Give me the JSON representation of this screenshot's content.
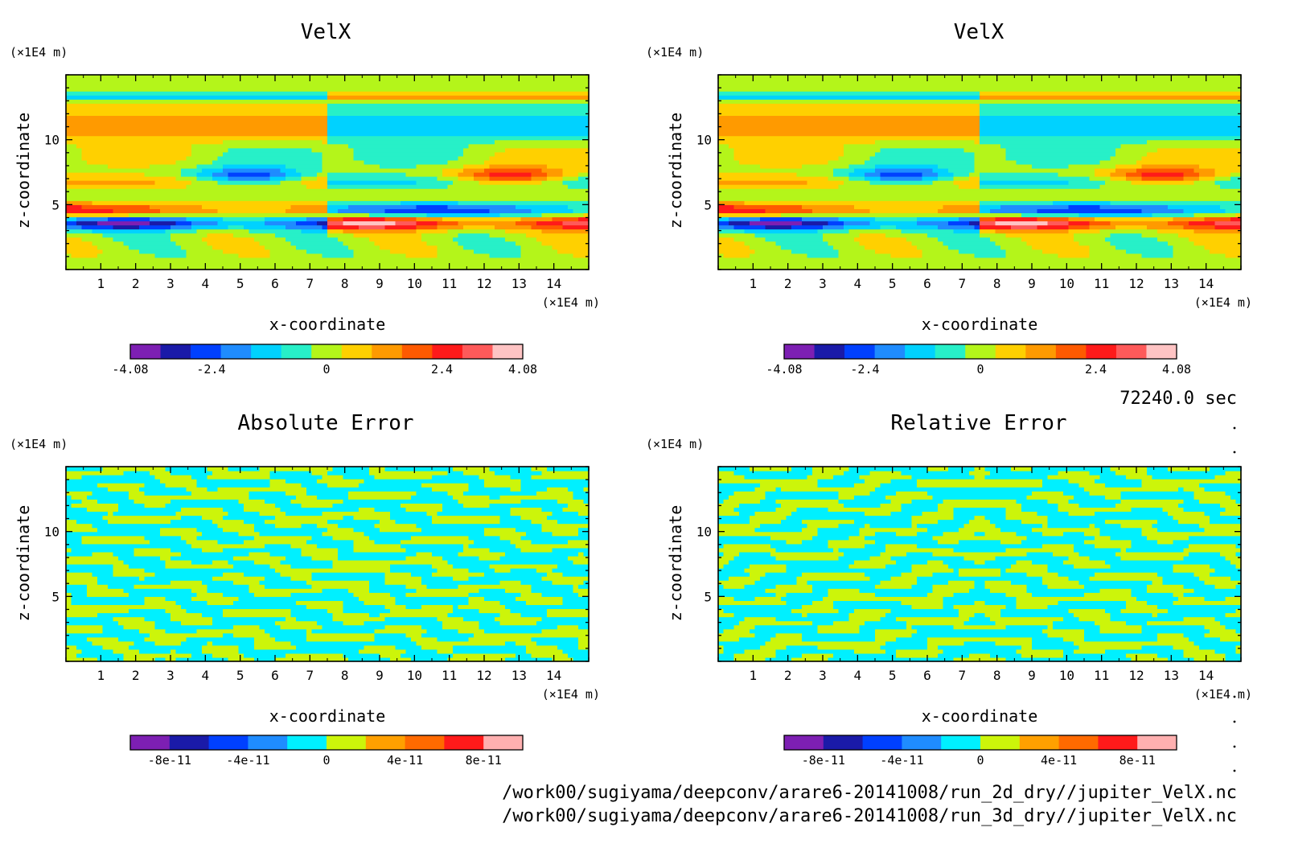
{
  "figure": {
    "time_label": "72240.0 sec",
    "footer_lines": [
      "/work00/sugiyama/deepconv/arare6-20141008/run_2d_dry//jupiter_VelX.nc",
      "/work00/sugiyama/deepconv/arare6-20141008/run_3d_dry//jupiter_VelX.nc"
    ]
  },
  "chart_data": [
    {
      "type": "heatmap",
      "title": "VelX",
      "xlabel": "x-coordinate",
      "ylabel": "z-coordinate",
      "x_unit": "(×1E4 m)",
      "y_unit": "(×1E4 m)",
      "xlim": [
        0,
        15
      ],
      "ylim": [
        0,
        15
      ],
      "x_ticks": [
        1,
        2,
        3,
        4,
        5,
        6,
        7,
        8,
        9,
        10,
        11,
        12,
        13,
        14
      ],
      "y_ticks": [
        5,
        10
      ],
      "colorbar": {
        "range": [
          -4.08,
          4.08
        ],
        "tick_values": [
          -4.08,
          -2.4,
          0,
          2.4,
          4.08
        ],
        "tick_labels": [
          "-4.08",
          "-2.4",
          "0",
          "2.4",
          "4.08"
        ],
        "colors": [
          "#7d1fb3",
          "#1a1aa8",
          "#0040ff",
          "#1f8cff",
          "#00d2ff",
          "#27f0c8",
          "#b4f51a",
          "#ffd000",
          "#ff9a00",
          "#ff5a00",
          "#ff1a1a",
          "#ff5a5a",
          "#ffc4c4"
        ]
      }
    },
    {
      "type": "heatmap",
      "title": "VelX",
      "xlabel": "x-coordinate",
      "ylabel": "z-coordinate",
      "x_unit": "(×1E4 m)",
      "y_unit": "(×1E4 m)",
      "xlim": [
        0,
        15
      ],
      "ylim": [
        0,
        15
      ],
      "x_ticks": [
        1,
        2,
        3,
        4,
        5,
        6,
        7,
        8,
        9,
        10,
        11,
        12,
        13,
        14
      ],
      "y_ticks": [
        5,
        10
      ],
      "colorbar": {
        "range": [
          -4.08,
          4.08
        ],
        "tick_values": [
          -4.08,
          -2.4,
          0,
          2.4,
          4.08
        ],
        "tick_labels": [
          "-4.08",
          "-2.4",
          "0",
          "2.4",
          "4.08"
        ],
        "colors": [
          "#7d1fb3",
          "#1a1aa8",
          "#0040ff",
          "#1f8cff",
          "#00d2ff",
          "#27f0c8",
          "#b4f51a",
          "#ffd000",
          "#ff9a00",
          "#ff5a00",
          "#ff1a1a",
          "#ff5a5a",
          "#ffc4c4"
        ]
      }
    },
    {
      "type": "heatmap",
      "title": "Absolute Error",
      "xlabel": "x-coordinate",
      "ylabel": "z-coordinate",
      "x_unit": "(×1E4 m)",
      "y_unit": "(×1E4 m)",
      "xlim": [
        0,
        15
      ],
      "ylim": [
        0,
        15
      ],
      "x_ticks": [
        1,
        2,
        3,
        4,
        5,
        6,
        7,
        8,
        9,
        10,
        11,
        12,
        13,
        14
      ],
      "y_ticks": [
        5,
        10
      ],
      "colorbar": {
        "range": [
          -1e-10,
          1e-10
        ],
        "tick_values": [
          -8e-11,
          -4e-11,
          0,
          4e-11,
          8e-11
        ],
        "tick_labels": [
          "-8e-11",
          "-4e-11",
          "0",
          "4e-11",
          "8e-11"
        ],
        "colors": [
          "#7d1fb3",
          "#1a1aa8",
          "#0040ff",
          "#1f8cff",
          "#00f0ff",
          "#ccf50a",
          "#ffa000",
          "#ff6a00",
          "#ff1a1a",
          "#ffb0b0"
        ]
      }
    },
    {
      "type": "heatmap",
      "title": "Relative Error",
      "xlabel": "x-coordinate",
      "ylabel": "z-coordinate",
      "x_unit": "(×1E4 m)",
      "y_unit": "(×1E4 m)",
      "xlim": [
        0,
        15
      ],
      "ylim": [
        0,
        15
      ],
      "x_ticks": [
        1,
        2,
        3,
        4,
        5,
        6,
        7,
        8,
        9,
        10,
        11,
        12,
        13,
        14
      ],
      "y_ticks": [
        5,
        10
      ],
      "colorbar": {
        "range": [
          -1e-10,
          1e-10
        ],
        "tick_values": [
          -8e-11,
          -4e-11,
          0,
          4e-11,
          8e-11
        ],
        "tick_labels": [
          "-8e-11",
          "-4e-11",
          "0",
          "4e-11",
          "8e-11"
        ],
        "colors": [
          "#7d1fb3",
          "#1a1aa8",
          "#0040ff",
          "#1f8cff",
          "#00f0ff",
          "#ccf50a",
          "#ffa000",
          "#ff6a00",
          "#ff1a1a",
          "#ffb0b0"
        ]
      }
    }
  ]
}
